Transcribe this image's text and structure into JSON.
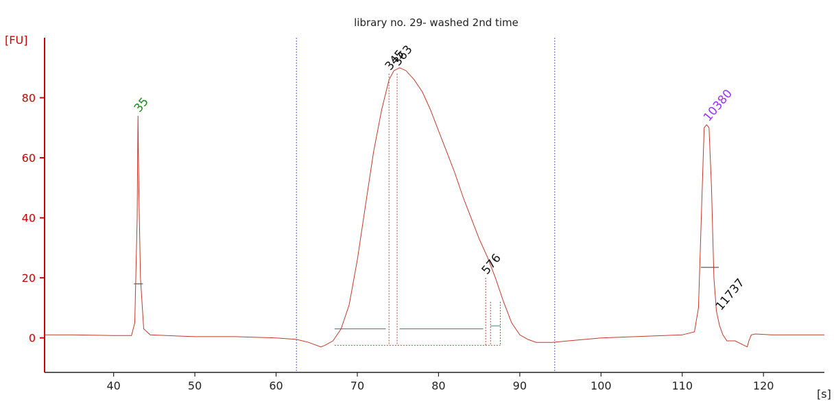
{
  "chart_data": {
    "type": "line",
    "title": "library no. 29- washed 2nd time",
    "xlabel": "[s]",
    "ylabel": "[FU]",
    "xlim": [
      31.5,
      127.5
    ],
    "ylim": [
      -11.5,
      100
    ],
    "xticks": [
      40,
      50,
      60,
      70,
      80,
      90,
      100,
      110,
      120
    ],
    "yticks": [
      0,
      20,
      40,
      60,
      80
    ],
    "colors": {
      "trace": "#c0392b",
      "axis": "#cc0000",
      "green_label": "#1a8a1a",
      "purple_label": "#9b30ff",
      "black_label": "#111111",
      "region_line": "#4a5fc1",
      "baseline": "#2e8b7a"
    },
    "series": [
      {
        "x": [
          31.5,
          35,
          40,
          42.2,
          42.6,
          42.9,
          43.0,
          43.1,
          43.3,
          43.7,
          44.5,
          50,
          55,
          60,
          62.5,
          64,
          65.5,
          66,
          67,
          68,
          69,
          70,
          71,
          72,
          73,
          73.9,
          74.5,
          75.2,
          76,
          77,
          78,
          79,
          80,
          81,
          82,
          83,
          84,
          85,
          86,
          87,
          88,
          89,
          90,
          91,
          92,
          94,
          96,
          100,
          105,
          110,
          111.5,
          112.0,
          112.4,
          112.7,
          113.0,
          113.3,
          113.6,
          113.9,
          114.2,
          114.6,
          115.0,
          115.5,
          116.5,
          118,
          118.2,
          118.5,
          119,
          121,
          125,
          127.5
        ],
        "y": [
          1,
          1,
          0.8,
          0.8,
          5,
          40,
          74,
          50,
          20,
          3,
          1,
          0.4,
          0.4,
          0,
          -0.5,
          -1.5,
          -3,
          -2.5,
          -1,
          3,
          11,
          26,
          44,
          62,
          76,
          86,
          89,
          90,
          89,
          86,
          82,
          76,
          69,
          62,
          55,
          47,
          40,
          33,
          27,
          20,
          12,
          5,
          1,
          -0.5,
          -1.5,
          -1.5,
          -1,
          0,
          0.5,
          1,
          2,
          10,
          45,
          70,
          71,
          70,
          50,
          20,
          9,
          4,
          1,
          -1,
          -1,
          -3,
          -1,
          1,
          1.3,
          1,
          1,
          1
        ]
      }
    ],
    "peaks": [
      {
        "label": "35",
        "x": 43.0,
        "y": 74,
        "color": "green"
      },
      {
        "label": "345",
        "x": 73.9,
        "y": 88,
        "color": "black"
      },
      {
        "label": "363",
        "x": 74.9,
        "y": 89.5,
        "color": "black"
      },
      {
        "label": "576",
        "x": 85.8,
        "y": 20,
        "color": "black"
      },
      {
        "label": "10380",
        "x": 113.1,
        "y": 71,
        "color": "purple"
      },
      {
        "label": "11737",
        "x": 114.6,
        "y": 8,
        "color": "black"
      }
    ],
    "region_markers": [
      62.5,
      94.3
    ],
    "baseline_segments": [
      {
        "x1": 67.2,
        "x2": 73.5,
        "y": 3
      },
      {
        "x1": 75.2,
        "x2": 85.5,
        "y": 3
      },
      {
        "x1": 86.4,
        "x2": 87.6,
        "y": 4
      },
      {
        "x1": 42.5,
        "x2": 43.6,
        "y": 18
      },
      {
        "x1": 112.3,
        "x2": 114.5,
        "y": 23.5
      }
    ]
  }
}
